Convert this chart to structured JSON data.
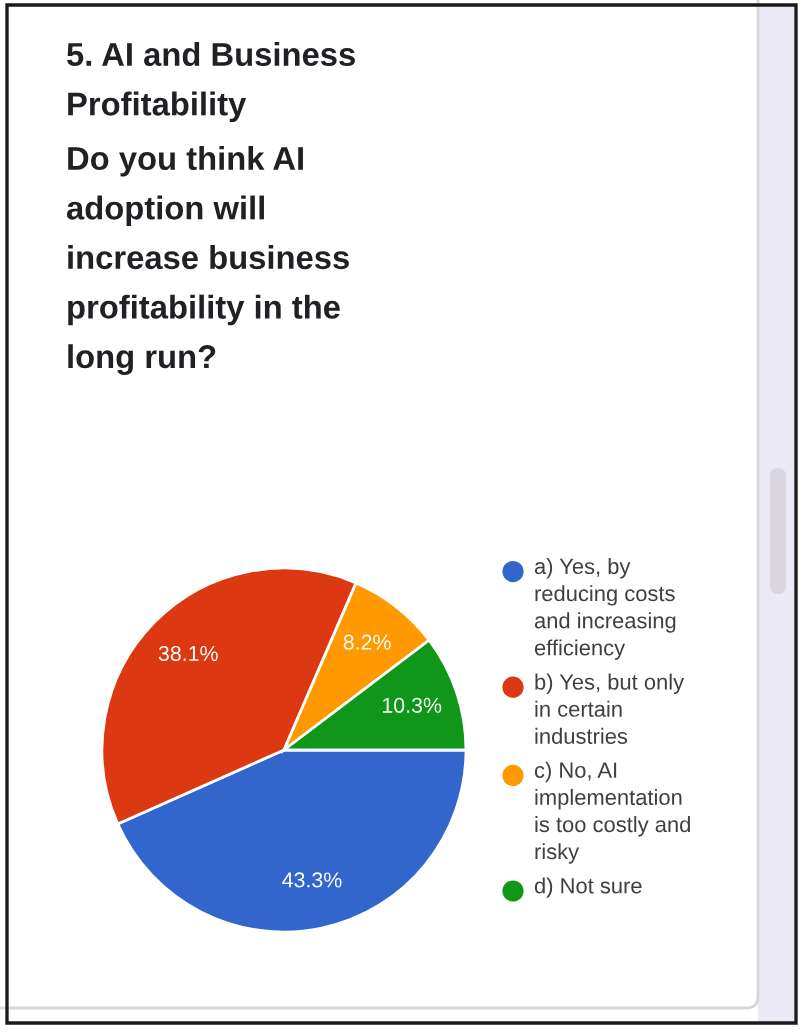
{
  "chart_data": {
    "type": "pie",
    "title": "5. AI and Business\nProfitability",
    "subtitle": "Do you think AI\nadoption will\nincrease business\nprofitability in the\nlong run?",
    "categories": [
      "a) Yes, by\nreducing costs\nand increasing\nefficiency",
      "b) Yes, but only\nin certain\nindustries",
      "c) No, AI\nimplementation\nis too costly and\nrisky",
      "d) Not sure"
    ],
    "values": [
      43.3,
      38.1,
      8.2,
      10.3
    ],
    "colors": [
      "#3366cc",
      "#dc3912",
      "#ff9900",
      "#109618"
    ],
    "value_labels": [
      "43.3%",
      "38.1%",
      "8.2%",
      "10.3%"
    ],
    "legend": "right"
  }
}
